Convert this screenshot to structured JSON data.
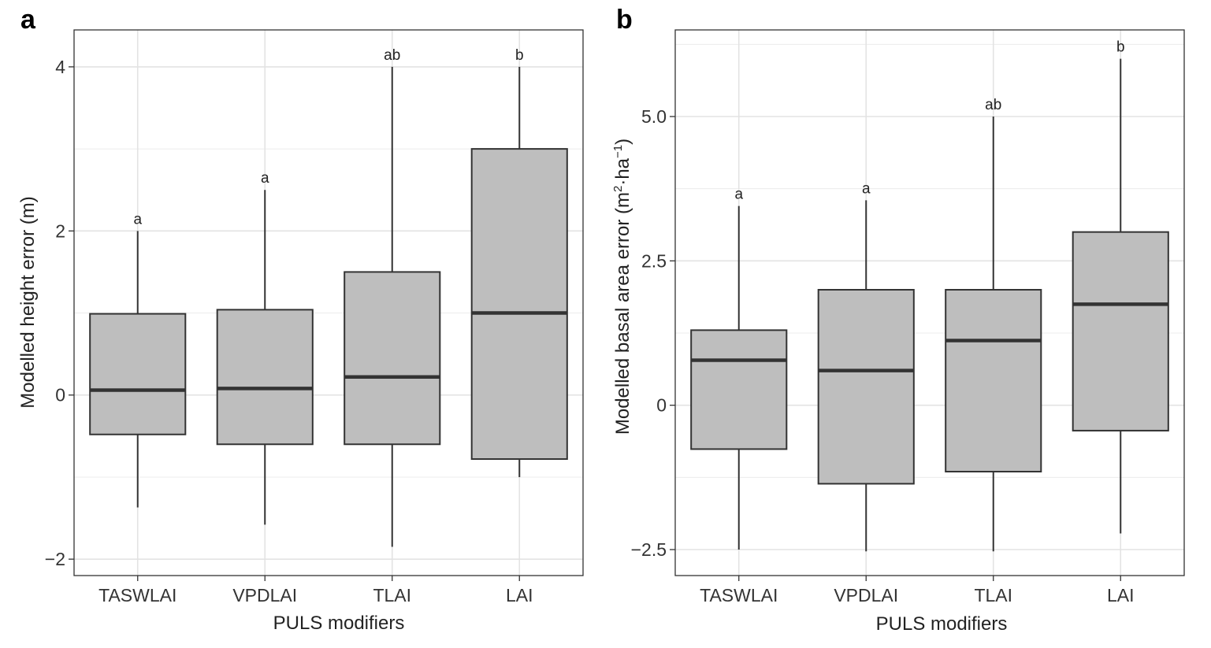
{
  "chart_data": [
    {
      "type": "box",
      "panel_label": "a",
      "xlabel": "PULS modifiers",
      "ylabel": "Modelled height error (m)",
      "ylim": [
        -2.2,
        4.45
      ],
      "y_ticks": [
        -2,
        0,
        2,
        4
      ],
      "y_tick_labels": [
        "−2",
        "0",
        "2",
        "4"
      ],
      "y_minor_ticks": [
        -1,
        1,
        3
      ],
      "grid": true,
      "categories": [
        "TASWLAI",
        "VPDLAI",
        "TLAI",
        "LAI"
      ],
      "boxes": [
        {
          "whisker_low": -1.37,
          "q1": -0.48,
          "median": 0.06,
          "q3": 0.99,
          "whisker_high": 2.0,
          "sig": "a"
        },
        {
          "whisker_low": -1.58,
          "q1": -0.6,
          "median": 0.08,
          "q3": 1.04,
          "whisker_high": 2.5,
          "sig": "a"
        },
        {
          "whisker_low": -1.85,
          "q1": -0.6,
          "median": 0.22,
          "q3": 1.5,
          "whisker_high": 4.0,
          "sig": "ab"
        },
        {
          "whisker_low": -1.0,
          "q1": -0.78,
          "median": 1.0,
          "q3": 3.0,
          "whisker_high": 4.0,
          "sig": "b"
        }
      ],
      "box_fill": "#bebebe",
      "box_stroke": "#333333"
    },
    {
      "type": "box",
      "panel_label": "b",
      "xlabel": "PULS modifiers",
      "ylabel_prefix": "Modelled basal area error (m",
      "ylabel_sup1": "2",
      "ylabel_mid": "·ha",
      "ylabel_sup2": "−1",
      "ylabel_suffix": ")",
      "ylim": [
        -2.95,
        6.5
      ],
      "y_ticks": [
        -2.5,
        0,
        2.5,
        5.0
      ],
      "y_tick_labels": [
        "−2.5",
        "0",
        "2.5",
        "5.0"
      ],
      "y_minor_ticks": [
        -1.25,
        1.25,
        3.75,
        6.25
      ],
      "grid": true,
      "categories": [
        "TASWLAI",
        "VPDLAI",
        "TLAI",
        "LAI"
      ],
      "boxes": [
        {
          "whisker_low": -2.5,
          "q1": -0.76,
          "median": 0.78,
          "q3": 1.3,
          "whisker_high": 3.45,
          "sig": "a"
        },
        {
          "whisker_low": -2.53,
          "q1": -1.36,
          "median": 0.6,
          "q3": 2.0,
          "whisker_high": 3.55,
          "sig": "a"
        },
        {
          "whisker_low": -2.53,
          "q1": -1.15,
          "median": 1.12,
          "q3": 2.0,
          "whisker_high": 5.0,
          "sig": "ab"
        },
        {
          "whisker_low": -2.22,
          "q1": -0.44,
          "median": 1.75,
          "q3": 3.0,
          "whisker_high": 6.0,
          "sig": "b"
        }
      ],
      "box_fill": "#bebebe",
      "box_stroke": "#333333"
    }
  ]
}
